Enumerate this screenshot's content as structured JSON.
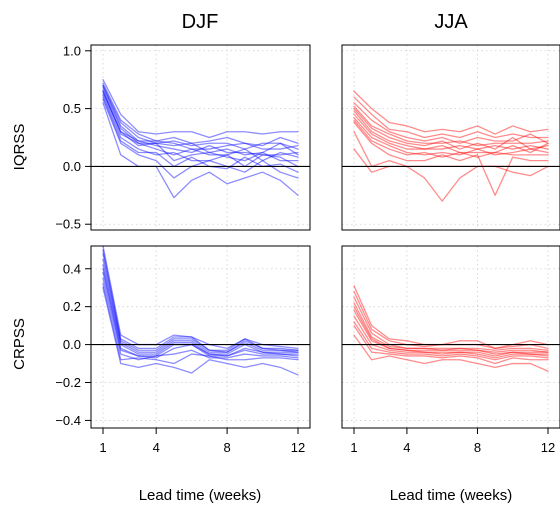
{
  "figure": {
    "column_titles": [
      "DJF",
      "JJA"
    ],
    "row_labels": [
      "IQRSS",
      "CRPSS"
    ],
    "xlabel": "Lead time (weeks)"
  },
  "chart_data": [
    {
      "type": "line",
      "panel": "IQRSS-DJF",
      "color": "#0000ff",
      "xlim": [
        1,
        12
      ],
      "ylim": [
        -0.55,
        1.05
      ],
      "xticks": [
        1,
        4,
        8,
        12
      ],
      "yticks": [
        -0.5,
        0.0,
        0.5,
        1.0
      ],
      "show_yticks": true,
      "grid": true,
      "zero_line": true,
      "x": [
        1,
        2,
        3,
        4,
        5,
        6,
        7,
        8,
        9,
        10,
        11,
        12
      ],
      "series": [
        {
          "values": [
            0.75,
            0.45,
            0.3,
            0.28,
            0.3,
            0.3,
            0.25,
            0.3,
            0.3,
            0.28,
            0.3,
            0.3
          ]
        },
        {
          "values": [
            0.72,
            0.4,
            0.28,
            0.22,
            0.25,
            0.2,
            0.22,
            0.25,
            0.2,
            0.18,
            0.25,
            0.2
          ]
        },
        {
          "values": [
            0.7,
            0.38,
            0.25,
            0.2,
            0.22,
            0.18,
            0.2,
            0.2,
            0.15,
            0.2,
            0.2,
            0.15
          ]
        },
        {
          "values": [
            0.7,
            0.35,
            0.22,
            0.22,
            0.2,
            0.15,
            0.15,
            0.18,
            0.2,
            0.15,
            0.15,
            0.18
          ]
        },
        {
          "values": [
            0.68,
            0.33,
            0.2,
            0.2,
            0.18,
            0.2,
            0.12,
            0.15,
            0.1,
            0.12,
            0.2,
            0.1
          ]
        },
        {
          "values": [
            0.66,
            0.3,
            0.22,
            0.18,
            0.15,
            0.12,
            0.18,
            0.12,
            0.12,
            0.1,
            0.1,
            0.12
          ]
        },
        {
          "values": [
            0.65,
            0.28,
            0.2,
            0.15,
            0.1,
            0.15,
            0.1,
            0.1,
            0.15,
            0.05,
            0.12,
            0.08
          ]
        },
        {
          "values": [
            0.64,
            0.3,
            0.18,
            0.2,
            0.05,
            0.1,
            0.12,
            0.08,
            0.05,
            0.12,
            0.05,
            0.05
          ]
        },
        {
          "values": [
            0.62,
            0.25,
            0.15,
            0.1,
            0.12,
            0.05,
            0.05,
            0.1,
            0.0,
            0.1,
            0.08,
            0.0
          ]
        },
        {
          "values": [
            0.6,
            0.22,
            0.12,
            0.12,
            0.0,
            0.08,
            0.0,
            -0.02,
            0.08,
            0.0,
            0.02,
            -0.05
          ]
        },
        {
          "values": [
            0.58,
            0.2,
            0.1,
            0.05,
            -0.1,
            0.0,
            0.05,
            0.0,
            -0.05,
            0.05,
            -0.05,
            -0.1
          ]
        },
        {
          "values": [
            0.55,
            0.1,
            0.0,
            0.0,
            -0.27,
            -0.12,
            -0.05,
            -0.15,
            -0.1,
            -0.05,
            -0.12,
            -0.25
          ]
        }
      ]
    },
    {
      "type": "line",
      "panel": "IQRSS-JJA",
      "color": "#ff0000",
      "xlim": [
        1,
        12
      ],
      "ylim": [
        -0.55,
        1.05
      ],
      "xticks": [
        1,
        4,
        8,
        12
      ],
      "yticks": [
        -0.5,
        0.0,
        0.5,
        1.0
      ],
      "show_yticks": false,
      "grid": true,
      "zero_line": true,
      "x": [
        1,
        2,
        3,
        4,
        5,
        6,
        7,
        8,
        9,
        10,
        11,
        12
      ],
      "series": [
        {
          "values": [
            0.65,
            0.5,
            0.38,
            0.35,
            0.3,
            0.32,
            0.3,
            0.35,
            0.28,
            0.35,
            0.3,
            0.32
          ]
        },
        {
          "values": [
            0.6,
            0.45,
            0.32,
            0.3,
            0.25,
            0.28,
            0.25,
            0.3,
            0.25,
            0.28,
            0.25,
            0.25
          ]
        },
        {
          "values": [
            0.55,
            0.4,
            0.3,
            0.25,
            0.22,
            0.25,
            0.2,
            0.25,
            0.22,
            0.22,
            0.28,
            0.2
          ]
        },
        {
          "values": [
            0.52,
            0.35,
            0.28,
            0.22,
            0.2,
            0.2,
            0.22,
            0.18,
            0.2,
            0.2,
            0.2,
            0.22
          ]
        },
        {
          "values": [
            0.5,
            0.33,
            0.25,
            0.2,
            0.18,
            0.22,
            0.15,
            0.2,
            0.15,
            0.25,
            0.15,
            0.18
          ]
        },
        {
          "values": [
            0.48,
            0.3,
            0.22,
            0.18,
            0.15,
            0.15,
            0.18,
            0.15,
            0.18,
            0.15,
            0.18,
            0.15
          ]
        },
        {
          "values": [
            0.45,
            0.28,
            0.2,
            0.15,
            0.15,
            0.18,
            0.12,
            0.12,
            0.12,
            0.18,
            0.12,
            0.2
          ]
        },
        {
          "values": [
            0.42,
            0.25,
            0.18,
            0.12,
            0.1,
            0.12,
            0.1,
            0.15,
            0.1,
            0.12,
            0.15,
            0.12
          ]
        },
        {
          "values": [
            0.4,
            0.22,
            0.15,
            0.1,
            0.12,
            0.08,
            0.12,
            0.08,
            0.12,
            0.1,
            0.1,
            0.1
          ]
        },
        {
          "values": [
            0.38,
            0.2,
            0.1,
            0.05,
            0.05,
            0.1,
            0.05,
            0.1,
            -0.25,
            0.08,
            0.05,
            0.05
          ]
        },
        {
          "values": [
            0.3,
            0.0,
            0.05,
            0.0,
            -0.1,
            -0.3,
            -0.1,
            0.0,
            0.0,
            -0.05,
            -0.08,
            0.0
          ]
        },
        {
          "values": [
            0.15,
            -0.05,
            0.0,
            0.0,
            0.0,
            0.0,
            0.0,
            0.0,
            0.0,
            0.0,
            0.0,
            0.0
          ]
        }
      ]
    },
    {
      "type": "line",
      "panel": "CRPSS-DJF",
      "color": "#0000ff",
      "xlim": [
        1,
        12
      ],
      "ylim": [
        -0.44,
        0.52
      ],
      "xticks": [
        1,
        4,
        8,
        12
      ],
      "yticks": [
        -0.4,
        -0.2,
        0.0,
        0.2,
        0.4
      ],
      "show_yticks": true,
      "grid": true,
      "zero_line": true,
      "x": [
        1,
        2,
        3,
        4,
        5,
        6,
        7,
        8,
        9,
        10,
        11,
        12
      ],
      "series": [
        {
          "values": [
            0.52,
            0.05,
            0.0,
            0.0,
            0.05,
            0.04,
            0.0,
            -0.02,
            0.03,
            0.0,
            -0.01,
            -0.02
          ]
        },
        {
          "values": [
            0.5,
            0.03,
            -0.02,
            -0.02,
            0.04,
            0.04,
            -0.03,
            -0.03,
            0.03,
            -0.02,
            -0.02,
            -0.03
          ]
        },
        {
          "values": [
            0.48,
            0.02,
            -0.03,
            -0.03,
            0.03,
            0.03,
            -0.03,
            -0.04,
            0.02,
            -0.02,
            -0.03,
            -0.03
          ]
        },
        {
          "values": [
            0.45,
            0.01,
            -0.04,
            -0.04,
            0.02,
            0.02,
            -0.04,
            -0.04,
            0.01,
            -0.03,
            -0.03,
            -0.04
          ]
        },
        {
          "values": [
            0.42,
            0.0,
            -0.05,
            -0.05,
            0.01,
            0.01,
            -0.05,
            -0.05,
            0.0,
            -0.04,
            -0.04,
            -0.04
          ]
        },
        {
          "values": [
            0.4,
            -0.02,
            -0.06,
            -0.06,
            0.0,
            0.0,
            -0.05,
            -0.06,
            -0.02,
            -0.04,
            -0.05,
            -0.05
          ]
        },
        {
          "values": [
            0.38,
            -0.03,
            -0.06,
            -0.07,
            -0.02,
            0.0,
            -0.06,
            -0.06,
            -0.03,
            -0.05,
            -0.05,
            -0.06
          ]
        },
        {
          "values": [
            0.35,
            -0.05,
            -0.08,
            -0.06,
            -0.05,
            -0.03,
            -0.07,
            -0.07,
            -0.05,
            -0.06,
            -0.06,
            -0.07
          ]
        },
        {
          "values": [
            0.32,
            -0.08,
            -0.07,
            -0.08,
            -0.1,
            -0.05,
            -0.06,
            -0.08,
            -0.08,
            -0.07,
            -0.07,
            -0.08
          ]
        },
        {
          "values": [
            0.3,
            -0.1,
            -0.12,
            -0.1,
            -0.12,
            -0.15,
            -0.08,
            -0.1,
            -0.12,
            -0.1,
            -0.12,
            -0.16
          ]
        }
      ]
    },
    {
      "type": "line",
      "panel": "CRPSS-JJA",
      "color": "#ff0000",
      "xlim": [
        1,
        12
      ],
      "ylim": [
        -0.44,
        0.52
      ],
      "xticks": [
        1,
        4,
        8,
        12
      ],
      "yticks": [
        -0.4,
        -0.2,
        0.0,
        0.2,
        0.4
      ],
      "show_yticks": false,
      "grid": true,
      "zero_line": true,
      "x": [
        1,
        2,
        3,
        4,
        5,
        6,
        7,
        8,
        9,
        10,
        11,
        12
      ],
      "series": [
        {
          "values": [
            0.31,
            0.1,
            0.03,
            0.02,
            0.0,
            0.0,
            0.02,
            0.02,
            -0.02,
            0.0,
            0.02,
            0.0
          ]
        },
        {
          "values": [
            0.28,
            0.08,
            0.02,
            0.0,
            -0.01,
            0.0,
            0.0,
            0.0,
            -0.02,
            -0.01,
            0.0,
            -0.02
          ]
        },
        {
          "values": [
            0.25,
            0.06,
            0.0,
            -0.02,
            -0.02,
            -0.02,
            -0.02,
            -0.02,
            -0.03,
            -0.02,
            -0.02,
            -0.03
          ]
        },
        {
          "values": [
            0.22,
            0.04,
            -0.01,
            -0.02,
            -0.02,
            -0.03,
            -0.02,
            -0.03,
            -0.04,
            -0.03,
            -0.03,
            -0.04
          ]
        },
        {
          "values": [
            0.2,
            0.03,
            -0.02,
            -0.03,
            -0.03,
            -0.03,
            -0.03,
            -0.03,
            -0.05,
            -0.04,
            -0.04,
            -0.04
          ]
        },
        {
          "values": [
            0.18,
            0.02,
            -0.02,
            -0.03,
            -0.04,
            -0.04,
            -0.04,
            -0.04,
            -0.06,
            -0.04,
            -0.05,
            -0.05
          ]
        },
        {
          "values": [
            0.15,
            0.0,
            -0.03,
            -0.04,
            -0.04,
            -0.05,
            -0.04,
            -0.05,
            -0.07,
            -0.05,
            -0.05,
            -0.06
          ]
        },
        {
          "values": [
            0.12,
            -0.02,
            -0.04,
            -0.05,
            -0.05,
            -0.06,
            -0.05,
            -0.06,
            -0.08,
            -0.06,
            -0.06,
            -0.07
          ]
        },
        {
          "values": [
            0.1,
            -0.04,
            -0.05,
            -0.06,
            -0.06,
            -0.07,
            -0.06,
            -0.07,
            -0.1,
            -0.07,
            -0.08,
            -0.08
          ]
        },
        {
          "values": [
            0.05,
            -0.08,
            -0.06,
            -0.08,
            -0.1,
            -0.08,
            -0.08,
            -0.1,
            -0.12,
            -0.1,
            -0.1,
            -0.14
          ]
        }
      ]
    }
  ]
}
